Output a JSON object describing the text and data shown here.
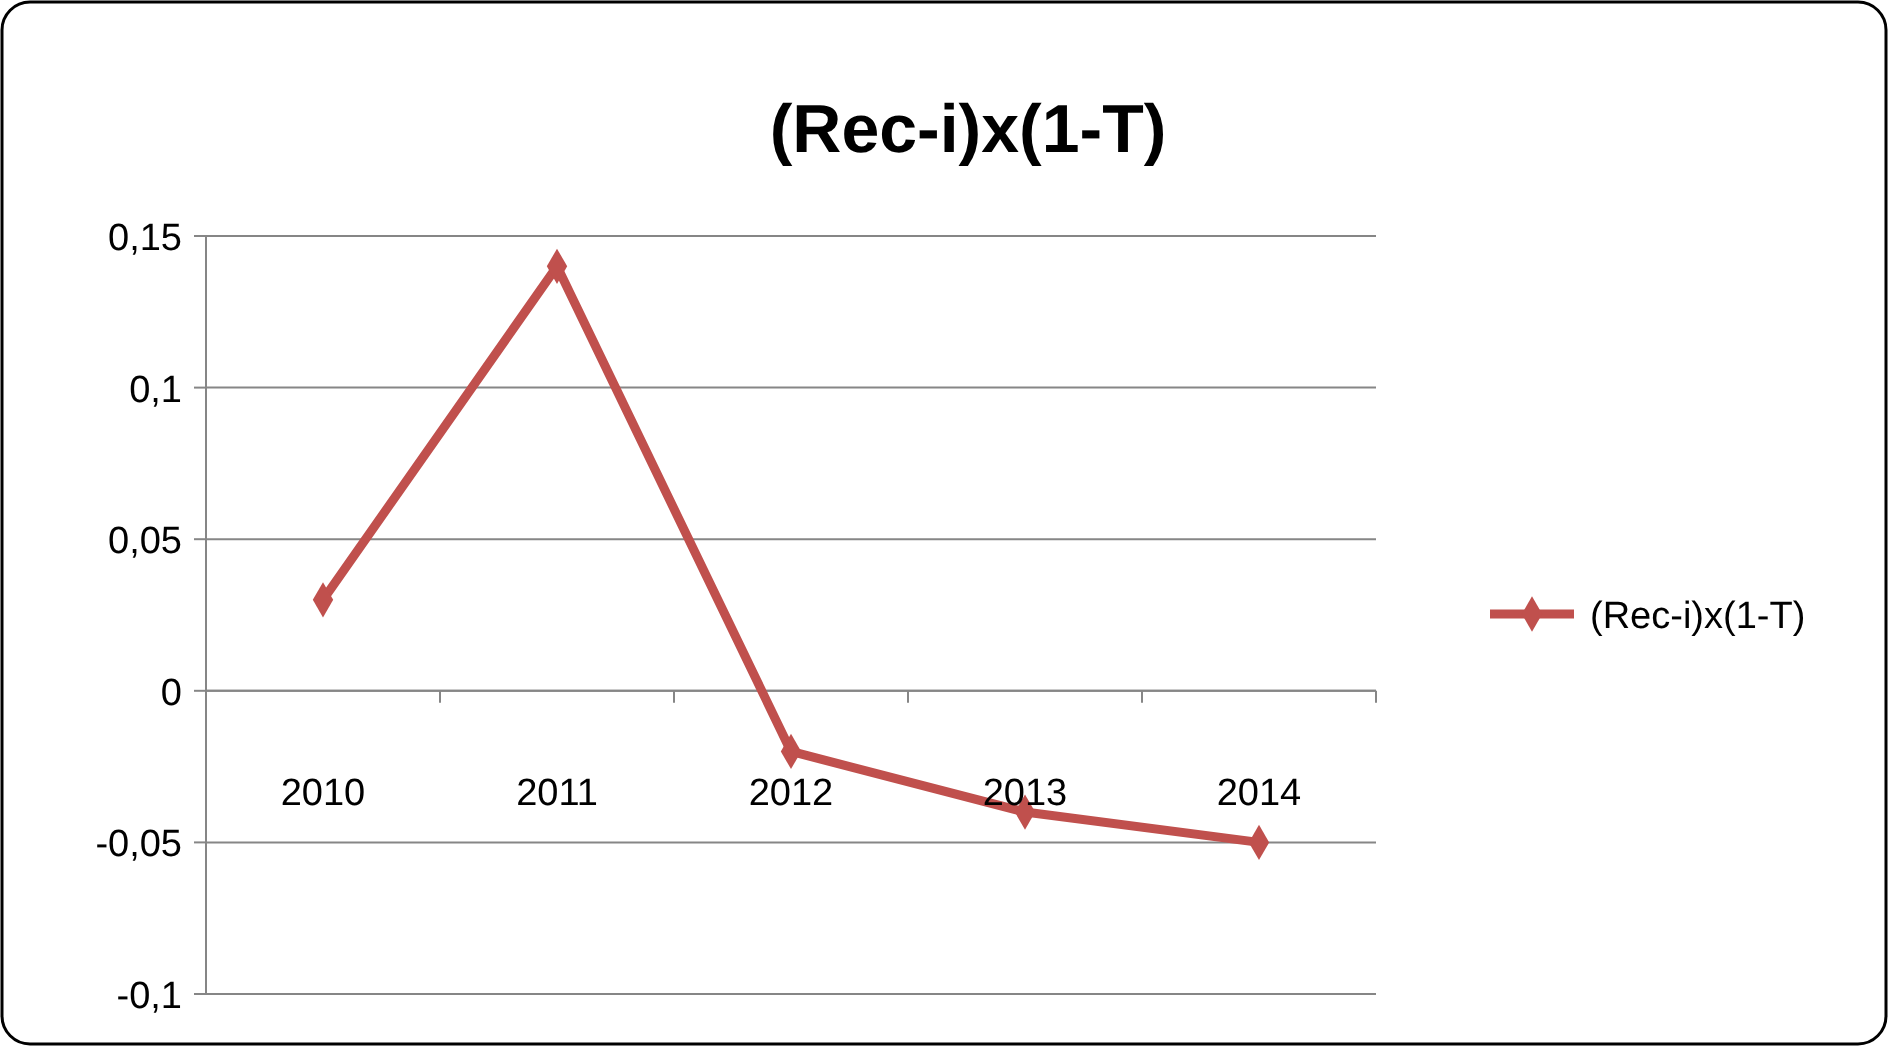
{
  "chart_data": {
    "type": "line",
    "title": "(Rec-i)x(1-T)",
    "categories": [
      "2010",
      "2011",
      "2012",
      "2013",
      "2014"
    ],
    "series": [
      {
        "name": "(Rec-i)x(1-T)",
        "color": "#c0504d",
        "values": [
          0.03,
          0.14,
          -0.02,
          -0.04,
          -0.05
        ]
      }
    ],
    "ylim": [
      -0.1,
      0.15
    ],
    "yticks": [
      {
        "value": -0.1,
        "label": "-0,1"
      },
      {
        "value": -0.05,
        "label": "-0,05"
      },
      {
        "value": 0,
        "label": "0"
      },
      {
        "value": 0.05,
        "label": "0,05"
      },
      {
        "value": 0.1,
        "label": "0,1"
      },
      {
        "value": 0.15,
        "label": "0,15"
      }
    ],
    "grid": "y",
    "legend": "right",
    "marker": "diamond",
    "line_style": "solid"
  }
}
